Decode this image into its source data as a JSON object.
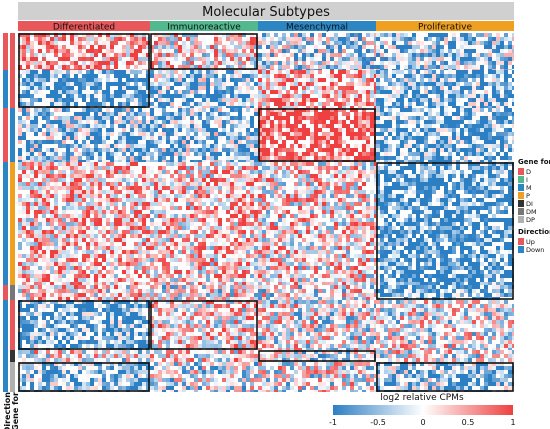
{
  "chart_data": {
    "type": "heatmap",
    "title": "Molecular Subtypes",
    "columns": [
      {
        "label": "Differentiated",
        "color": "#e8575a"
      },
      {
        "label": "Immunoreactive",
        "color": "#52b98f"
      },
      {
        "label": "Mesenchymal",
        "color": "#2d86c4"
      },
      {
        "label": "Proliferative",
        "color": "#f0a020"
      }
    ],
    "row_annotations": [
      {
        "label": "Direction"
      },
      {
        "label": "Gene for"
      }
    ],
    "legend_gene_for": {
      "title": "Gene for",
      "items": [
        {
          "label": "D",
          "color": "#e8575a"
        },
        {
          "label": "I",
          "color": "#52b98f"
        },
        {
          "label": "M",
          "color": "#2d86c4"
        },
        {
          "label": "P",
          "color": "#f0a020"
        },
        {
          "label": "DI",
          "color": "#333333"
        },
        {
          "label": "DM",
          "color": "#777777"
        },
        {
          "label": "DP",
          "color": "#b0b0b0"
        }
      ]
    },
    "legend_direction": {
      "title": "Direction",
      "items": [
        {
          "label": "Up",
          "color": "#e8575a"
        },
        {
          "label": "Down",
          "color": "#2d86c4"
        }
      ]
    },
    "colorbar": {
      "title": "log2 relative CPMs",
      "ticks": [
        "-1",
        "-0.5",
        "0",
        "0.5",
        "1"
      ],
      "values": [
        -1,
        -0.5,
        0,
        0.5,
        1
      ],
      "colors": {
        "low": "#2d7fc4",
        "mid": "#ffffff",
        "high": "#ee4040"
      }
    },
    "row_groups": [
      {
        "gene_for": "D",
        "direction": "Up",
        "tone": [
          0.3,
          0.1,
          -0.2,
          -0.3
        ]
      },
      {
        "gene_for": "D",
        "direction": "Down",
        "tone": [
          -0.5,
          -0.3,
          0.3,
          -0.4
        ]
      },
      {
        "gene_for": "M",
        "direction": "Up",
        "tone": [
          -0.3,
          -0.3,
          0.55,
          -0.45
        ]
      },
      {
        "gene_for": "P",
        "direction": "Down",
        "tone": [
          0.2,
          0.15,
          0.1,
          -0.55
        ]
      },
      {
        "gene_for": "DM",
        "direction": "Up",
        "tone": [
          0.1,
          0.0,
          0.0,
          -0.5
        ]
      },
      {
        "gene_for": "D",
        "direction": "Down",
        "tone": [
          -0.45,
          0.1,
          0.0,
          0.0
        ]
      },
      {
        "gene_for": "DI",
        "direction": "Down",
        "tone": [
          0.0,
          0.05,
          -0.15,
          0.0
        ]
      },
      {
        "gene_for": "DP",
        "direction": "Down",
        "tone": [
          -0.4,
          -0.1,
          0.0,
          -0.35
        ]
      }
    ],
    "highlight_boxes": [
      {
        "column": "Differentiated",
        "row_groups": [
          0,
          1
        ]
      },
      {
        "column": "Immunoreactive",
        "row_groups": [
          0
        ]
      },
      {
        "column": "Mesenchymal",
        "row_groups": [
          2
        ]
      },
      {
        "column": "Proliferative",
        "row_groups": [
          3,
          4
        ]
      },
      {
        "column": "Differentiated",
        "row_groups": [
          5
        ]
      },
      {
        "column": "Immunoreactive",
        "row_groups": [
          5
        ]
      },
      {
        "column": "Mesenchymal",
        "row_groups": [
          6
        ]
      },
      {
        "column": "Differentiated",
        "row_groups": [
          7
        ]
      },
      {
        "column": "Proliferative",
        "row_groups": [
          7
        ]
      }
    ]
  }
}
